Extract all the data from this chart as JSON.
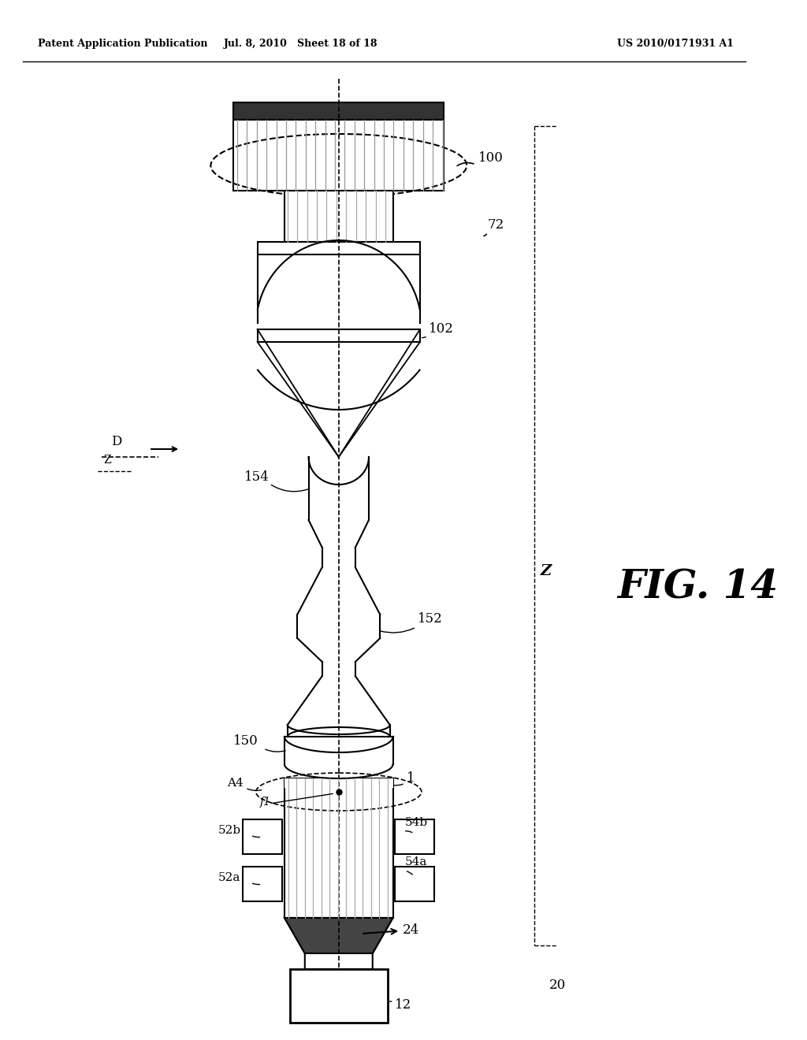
{
  "header_left": "Patent Application Publication",
  "header_mid": "Jul. 8, 2010   Sheet 18 of 18",
  "header_right": "US 2010/0171931 A1",
  "fig_label": "FIG. 14",
  "bg_color": "#ffffff",
  "line_color": "#000000",
  "label_100": "100",
  "label_72": "72",
  "label_102": "102",
  "label_154": "154",
  "label_152": "152",
  "label_150": "150",
  "label_A4": "A4",
  "label_f1": "f1",
  "label_52b": "52b",
  "label_54b": "54b",
  "label_52a": "52a",
  "label_54a": "54a",
  "label_24": "24",
  "label_12": "12",
  "label_20": "20",
  "label_1": "1",
  "label_D": "D",
  "label_Z": "Z"
}
